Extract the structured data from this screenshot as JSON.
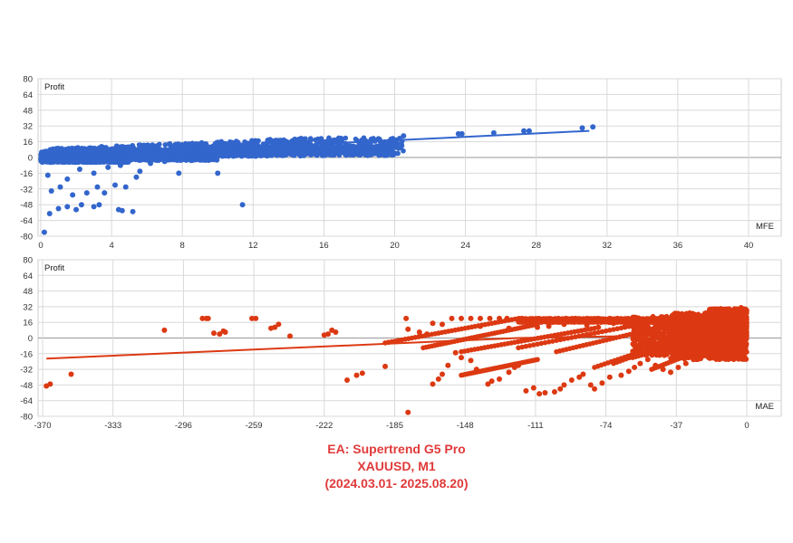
{
  "caption": {
    "line1": "EA: Supertrend G5  Pro",
    "line2": "XAUUSD, M1",
    "line3": "(2024.03.01- 2025.08.20)"
  },
  "colors": {
    "top_series": "#3366cc",
    "bottom_series": "#dc3912",
    "caption": "#e03a3a",
    "grid": "#d9d9d9"
  },
  "chart_data": [
    {
      "type": "scatter",
      "name": "profit-vs-mfe",
      "xlabel": "MFE",
      "ylabel": "Profit",
      "xlim": [
        0,
        40
      ],
      "ylim": [
        -80,
        80
      ],
      "x_ticks": [
        0,
        4,
        8,
        12,
        16,
        20,
        24,
        28,
        32,
        36,
        40
      ],
      "y_ticks": [
        80,
        64,
        48,
        32,
        16,
        0,
        -16,
        -32,
        -48,
        -64,
        -80
      ],
      "trendline": [
        [
          0,
          0
        ],
        [
          31,
          27
        ]
      ],
      "points": [
        [
          0.2,
          -76
        ],
        [
          0.5,
          -57
        ],
        [
          1.0,
          -52
        ],
        [
          1.5,
          -50
        ],
        [
          2.0,
          -53
        ],
        [
          2.3,
          -48
        ],
        [
          3.0,
          -50
        ],
        [
          3.3,
          -48
        ],
        [
          4.4,
          -53
        ],
        [
          4.6,
          -54
        ],
        [
          5.2,
          -55
        ],
        [
          0.6,
          -34
        ],
        [
          1.1,
          -30
        ],
        [
          1.8,
          -38
        ],
        [
          2.6,
          -36
        ],
        [
          3.2,
          -30
        ],
        [
          3.6,
          -36
        ],
        [
          4.2,
          -28
        ],
        [
          4.8,
          -30
        ],
        [
          5.4,
          -20
        ],
        [
          0.4,
          -18
        ],
        [
          1.5,
          -22
        ],
        [
          2.2,
          -12
        ],
        [
          3.0,
          -16
        ],
        [
          3.8,
          -10
        ],
        [
          4.5,
          -8
        ],
        [
          5.6,
          -14
        ],
        [
          6.2,
          -6
        ],
        [
          7.0,
          -4
        ],
        [
          7.8,
          -16
        ],
        [
          8.5,
          -3
        ],
        [
          10.0,
          -16
        ],
        [
          11.4,
          -48
        ],
        [
          20.5,
          22
        ],
        [
          23.6,
          24
        ],
        [
          23.8,
          24
        ],
        [
          25.6,
          25
        ],
        [
          27.3,
          27
        ],
        [
          27.6,
          27
        ],
        [
          30.6,
          30
        ],
        [
          31.2,
          31
        ],
        [
          18.6,
          7
        ],
        [
          19.1,
          6
        ]
      ],
      "dense_bands": [
        {
          "x0": 0,
          "x1": 20.5,
          "y0": 2,
          "y1": 20
        },
        {
          "x0": 0,
          "x1": 20.0,
          "y0": 0,
          "y1": 12
        },
        {
          "x0": 0,
          "x1": 10.0,
          "y0": -3,
          "y1": 3
        },
        {
          "x0": 0,
          "x1": 5.0,
          "y0": -5,
          "y1": 0
        }
      ]
    },
    {
      "type": "scatter",
      "name": "profit-vs-mae",
      "xlabel": "MAE",
      "ylabel": "Profit",
      "xlim": [
        -370,
        0
      ],
      "ylim": [
        -80,
        80
      ],
      "x_ticks": [
        -370,
        -333,
        -296,
        -259,
        -222,
        -185,
        -148,
        -111,
        -74,
        -37,
        0
      ],
      "y_ticks": [
        80,
        64,
        48,
        32,
        16,
        0,
        -16,
        -32,
        -48,
        -64,
        -80
      ],
      "trendline": [
        [
          -368,
          -21
        ],
        [
          -120,
          0
        ],
        [
          0,
          4
        ]
      ],
      "points": [
        [
          -368,
          -49
        ],
        [
          -366,
          -47
        ],
        [
          -355,
          -37
        ],
        [
          -306,
          8
        ],
        [
          -286,
          20
        ],
        [
          -284,
          20
        ],
        [
          -283,
          20
        ],
        [
          -280,
          5
        ],
        [
          -277,
          4
        ],
        [
          -275,
          7
        ],
        [
          -274,
          6
        ],
        [
          -260,
          20
        ],
        [
          -258,
          20
        ],
        [
          -250,
          10
        ],
        [
          -248,
          11
        ],
        [
          -246,
          14
        ],
        [
          -240,
          2
        ],
        [
          -222,
          3
        ],
        [
          -220,
          4
        ],
        [
          -218,
          8
        ],
        [
          -216,
          6
        ],
        [
          -210,
          -43
        ],
        [
          -205,
          -38
        ],
        [
          -202,
          -36
        ],
        [
          -190,
          -29
        ],
        [
          -179,
          20
        ],
        [
          -178,
          9
        ],
        [
          -178,
          -76
        ],
        [
          -172,
          6
        ],
        [
          -168,
          4
        ],
        [
          -165,
          -47
        ],
        [
          -162,
          -42
        ],
        [
          -160,
          -37
        ],
        [
          -157,
          -28
        ],
        [
          -153,
          -15
        ],
        [
          -150,
          -20
        ],
        [
          -145,
          -23
        ],
        [
          -142,
          -32
        ],
        [
          -136,
          -47
        ],
        [
          -134,
          -44
        ],
        [
          -130,
          -42
        ],
        [
          -125,
          -35
        ],
        [
          -122,
          -30
        ],
        [
          -120,
          -28
        ],
        [
          -116,
          -54
        ],
        [
          -112,
          -51
        ],
        [
          -109,
          -57
        ],
        [
          -106,
          -56
        ],
        [
          -101,
          -55
        ],
        [
          -98,
          -52
        ],
        [
          -96,
          -48
        ],
        [
          -92,
          -43
        ],
        [
          -88,
          -40
        ],
        [
          -86,
          -37
        ],
        [
          -82,
          -48
        ],
        [
          -80,
          -52
        ],
        [
          -76,
          -46
        ],
        [
          -72,
          -40
        ],
        [
          -66,
          -38
        ],
        [
          -62,
          -34
        ],
        [
          -59,
          -30
        ],
        [
          -56,
          -26
        ],
        [
          -52,
          -22
        ],
        [
          -48,
          -28
        ],
        [
          -44,
          -32
        ],
        [
          -40,
          -35
        ],
        [
          -36,
          -30
        ],
        [
          -32,
          -26
        ],
        [
          -28,
          -22
        ],
        [
          -155,
          20
        ],
        [
          -150,
          20
        ],
        [
          -145,
          20
        ],
        [
          -140,
          20
        ],
        [
          -135,
          20
        ],
        [
          -130,
          20
        ],
        [
          -126,
          20
        ],
        [
          -118,
          20
        ],
        [
          -99,
          20
        ],
        [
          -95,
          20
        ],
        [
          -90,
          20
        ],
        [
          -84,
          20
        ],
        [
          -78,
          20
        ],
        [
          -72,
          20
        ],
        [
          -68,
          20
        ],
        [
          -165,
          15
        ],
        [
          -160,
          14
        ],
        [
          -140,
          12
        ],
        [
          -125,
          10
        ],
        [
          -110,
          11
        ],
        [
          -104,
          12
        ],
        [
          -96,
          14
        ],
        [
          -84,
          13
        ],
        [
          -78,
          11
        ],
        [
          -70,
          15
        ],
        [
          -64,
          12
        ],
        [
          -58,
          14
        ],
        [
          -3,
          31
        ],
        [
          -2,
          28
        ],
        [
          -4,
          24
        ]
      ],
      "dense_bands": [
        {
          "x0": -60,
          "x1": 0,
          "y0": -18,
          "y1": 22
        },
        {
          "x0": -40,
          "x1": 0,
          "y0": -22,
          "y1": 26
        },
        {
          "x0": -120,
          "x1": -45,
          "y0": 16,
          "y1": 20
        },
        {
          "x0": -20,
          "x1": 0,
          "y0": 0,
          "y1": 30
        }
      ],
      "diagonal_streaks": [
        [
          [
            -190,
            -5
          ],
          [
            -120,
            20
          ]
        ],
        [
          [
            -170,
            -10
          ],
          [
            -110,
            14
          ]
        ],
        [
          [
            -150,
            -14
          ],
          [
            -80,
            10
          ]
        ],
        [
          [
            -120,
            -10
          ],
          [
            -40,
            20
          ]
        ],
        [
          [
            -100,
            -14
          ],
          [
            -30,
            18
          ]
        ],
        [
          [
            -80,
            -30
          ],
          [
            -10,
            16
          ]
        ],
        [
          [
            -70,
            -26
          ],
          [
            -5,
            20
          ]
        ],
        [
          [
            -60,
            -20
          ],
          [
            0,
            12
          ]
        ],
        [
          [
            -50,
            -32
          ],
          [
            0,
            6
          ]
        ],
        [
          [
            -150,
            -38
          ],
          [
            -110,
            -22
          ]
        ]
      ]
    }
  ]
}
